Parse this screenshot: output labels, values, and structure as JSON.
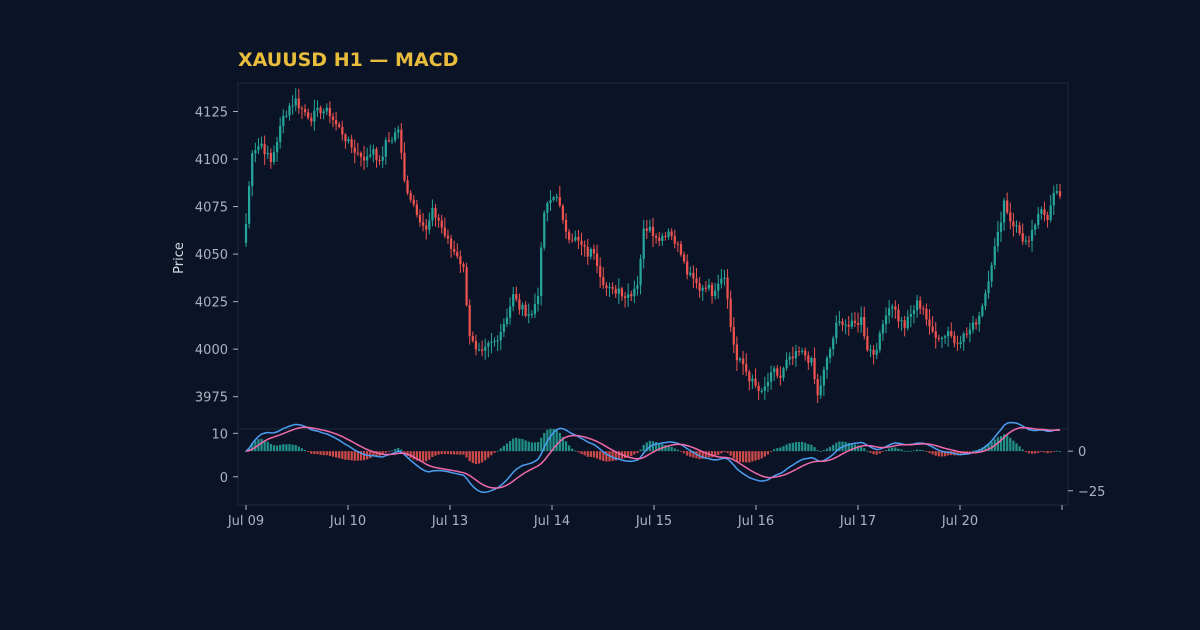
{
  "chart_data": {
    "type": "candlestick+macd",
    "title": "XAUUSD H1 — MACD",
    "ylabel": "Price",
    "x_tick_labels": [
      "Jul 09",
      "Jul 10",
      "Jul 13",
      "Jul 14",
      "Jul 15",
      "Jul 16",
      "Jul 17",
      "Jul 20"
    ],
    "price_ticks": [
      3975,
      4000,
      4025,
      4050,
      4075,
      4100,
      4125
    ],
    "price_ylim": [
      3958,
      4140
    ],
    "macd_left_ticks": [
      0,
      10
    ],
    "macd_right_ticks": [
      0,
      -25
    ],
    "macd_ylim": [
      -6.5,
      11
    ],
    "macd_right_ylim": [
      -34,
      14
    ],
    "colors": {
      "background": "#0b1426",
      "title": "#e8bc3c",
      "up": "#26a69a",
      "down": "#ef5350",
      "macd_line": "#4c9ef2",
      "signal_line": "#f06aaa",
      "grid": "#1e2a3e"
    },
    "waypoints": [
      [
        0,
        4066
      ],
      [
        2,
        4105
      ],
      [
        5,
        4108
      ],
      [
        8,
        4098
      ],
      [
        12,
        4122
      ],
      [
        14,
        4128
      ],
      [
        16,
        4131
      ],
      [
        18,
        4126
      ],
      [
        21,
        4122
      ],
      [
        24,
        4126
      ],
      [
        27,
        4124
      ],
      [
        29,
        4118
      ],
      [
        31,
        4114
      ],
      [
        33,
        4108
      ],
      [
        36,
        4103
      ],
      [
        39,
        4100
      ],
      [
        41,
        4106
      ],
      [
        43,
        4097
      ],
      [
        45,
        4108
      ],
      [
        47,
        4111
      ],
      [
        49,
        4116
      ],
      [
        51,
        4088
      ],
      [
        53,
        4080
      ],
      [
        56,
        4069
      ],
      [
        58,
        4062
      ],
      [
        60,
        4072
      ],
      [
        62,
        4068
      ],
      [
        64,
        4060
      ],
      [
        66,
        4053
      ],
      [
        68,
        4050
      ],
      [
        70,
        4042
      ],
      [
        72,
        4008
      ],
      [
        74,
        3998
      ],
      [
        76,
        3997
      ],
      [
        78,
        4002
      ],
      [
        80,
        4004
      ],
      [
        82,
        4010
      ],
      [
        84,
        4018
      ],
      [
        86,
        4028
      ],
      [
        88,
        4022
      ],
      [
        90,
        4020
      ],
      [
        92,
        4018
      ],
      [
        94,
        4030
      ],
      [
        96,
        4072
      ],
      [
        98,
        4078
      ],
      [
        100,
        4082
      ],
      [
        102,
        4066
      ],
      [
        104,
        4060
      ],
      [
        106,
        4058
      ],
      [
        108,
        4054
      ],
      [
        110,
        4050
      ],
      [
        112,
        4052
      ],
      [
        114,
        4040
      ],
      [
        116,
        4032
      ],
      [
        118,
        4030
      ],
      [
        120,
        4032
      ],
      [
        122,
        4028
      ],
      [
        124,
        4030
      ],
      [
        126,
        4035
      ],
      [
        128,
        4062
      ],
      [
        130,
        4066
      ],
      [
        132,
        4058
      ],
      [
        134,
        4060
      ],
      [
        136,
        4062
      ],
      [
        138,
        4058
      ],
      [
        140,
        4050
      ],
      [
        142,
        4040
      ],
      [
        144,
        4036
      ],
      [
        146,
        4032
      ],
      [
        148,
        4034
      ],
      [
        150,
        4030
      ],
      [
        152,
        4036
      ],
      [
        154,
        4040
      ],
      [
        156,
        4012
      ],
      [
        158,
        3994
      ],
      [
        160,
        3992
      ],
      [
        162,
        3985
      ],
      [
        164,
        3980
      ],
      [
        166,
        3976
      ],
      [
        168,
        3983
      ],
      [
        170,
        3988
      ],
      [
        172,
        3985
      ],
      [
        174,
        3993
      ],
      [
        176,
        3995
      ],
      [
        178,
        3998
      ],
      [
        180,
        3997
      ],
      [
        182,
        3993
      ],
      [
        184,
        3975
      ],
      [
        186,
        3988
      ],
      [
        188,
        4000
      ],
      [
        190,
        4012
      ],
      [
        192,
        4015
      ],
      [
        194,
        4012
      ],
      [
        196,
        4013
      ],
      [
        198,
        4016
      ],
      [
        200,
        4001
      ],
      [
        202,
        3998
      ],
      [
        204,
        4006
      ],
      [
        206,
        4020
      ],
      [
        208,
        4024
      ],
      [
        210,
        4016
      ],
      [
        212,
        4012
      ],
      [
        214,
        4018
      ],
      [
        216,
        4024
      ],
      [
        218,
        4022
      ],
      [
        220,
        4010
      ],
      [
        222,
        4008
      ],
      [
        224,
        4006
      ],
      [
        226,
        4010
      ],
      [
        228,
        4004
      ],
      [
        230,
        4006
      ],
      [
        232,
        4008
      ],
      [
        234,
        4012
      ],
      [
        236,
        4018
      ],
      [
        238,
        4030
      ],
      [
        240,
        4046
      ],
      [
        242,
        4060
      ],
      [
        244,
        4078
      ],
      [
        246,
        4068
      ],
      [
        248,
        4064
      ],
      [
        250,
        4058
      ],
      [
        252,
        4055
      ],
      [
        254,
        4066
      ],
      [
        256,
        4072
      ],
      [
        258,
        4070
      ],
      [
        260,
        4084
      ],
      [
        262,
        4080
      ]
    ]
  }
}
